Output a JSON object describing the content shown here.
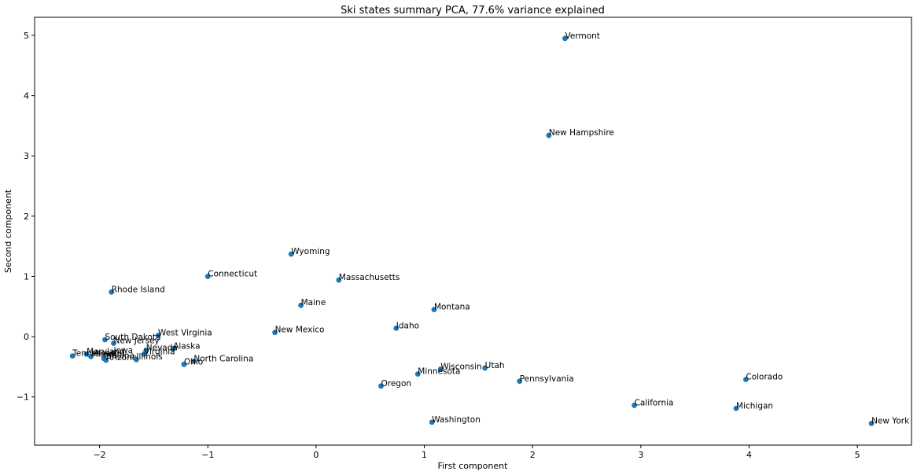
{
  "chart_data": {
    "type": "scatter",
    "title": "Ski states summary PCA, 77.6% variance explained",
    "xlabel": "First component",
    "ylabel": "Second component",
    "xlim": [
      -2.6,
      5.5
    ],
    "ylim": [
      -1.8,
      5.3
    ],
    "xticks": [
      -2,
      -1,
      0,
      1,
      2,
      3,
      4,
      5
    ],
    "yticks": [
      -1,
      0,
      1,
      2,
      3,
      4,
      5
    ],
    "tick_minus": "−",
    "grid": false,
    "marker_color": "#1f77b4",
    "points": [
      {
        "label": "Vermont",
        "x": 2.3,
        "y": 4.95
      },
      {
        "label": "New Hampshire",
        "x": 2.15,
        "y": 3.34
      },
      {
        "label": "Wyoming",
        "x": -0.23,
        "y": 1.37
      },
      {
        "label": "Connecticut",
        "x": -1.0,
        "y": 1.0
      },
      {
        "label": "Massachusetts",
        "x": 0.21,
        "y": 0.94
      },
      {
        "label": "Rhode Island",
        "x": -1.89,
        "y": 0.74
      },
      {
        "label": "Maine",
        "x": -0.14,
        "y": 0.52
      },
      {
        "label": "Montana",
        "x": 1.09,
        "y": 0.45
      },
      {
        "label": "Idaho",
        "x": 0.74,
        "y": 0.14
      },
      {
        "label": "New Mexico",
        "x": -0.38,
        "y": 0.07
      },
      {
        "label": "West Virginia",
        "x": -1.46,
        "y": 0.02
      },
      {
        "label": "South Dakota",
        "x": -1.95,
        "y": -0.05
      },
      {
        "label": "New Jersey",
        "x": -1.87,
        "y": -0.11
      },
      {
        "label": "Alaska",
        "x": -1.32,
        "y": -0.2
      },
      {
        "label": "Nevada",
        "x": -1.57,
        "y": -0.23
      },
      {
        "label": "Virginia",
        "x": -1.59,
        "y": -0.29
      },
      {
        "label": "Iowa",
        "x": -1.87,
        "y": -0.27
      },
      {
        "label": "Maryland",
        "x": -2.12,
        "y": -0.29
      },
      {
        "label": "Tennessee",
        "x": -2.25,
        "y": -0.32
      },
      {
        "label": "Missouri",
        "x": -2.08,
        "y": -0.33
      },
      {
        "label": "Indiana",
        "x": -1.96,
        "y": -0.36
      },
      {
        "label": "Arizona",
        "x": -1.94,
        "y": -0.39
      },
      {
        "label": "Illinois",
        "x": -1.66,
        "y": -0.38
      },
      {
        "label": "North Carolina",
        "x": -1.13,
        "y": -0.41
      },
      {
        "label": "Ohio",
        "x": -1.22,
        "y": -0.46
      },
      {
        "label": "Utah",
        "x": 1.56,
        "y": -0.52
      },
      {
        "label": "Wisconsin",
        "x": 1.15,
        "y": -0.54
      },
      {
        "label": "Minnesota",
        "x": 0.94,
        "y": -0.62
      },
      {
        "label": "Pennsylvania",
        "x": 1.88,
        "y": -0.74
      },
      {
        "label": "Colorado",
        "x": 3.97,
        "y": -0.71
      },
      {
        "label": "Oregon",
        "x": 0.6,
        "y": -0.82
      },
      {
        "label": "California",
        "x": 2.94,
        "y": -1.14
      },
      {
        "label": "Michigan",
        "x": 3.88,
        "y": -1.19
      },
      {
        "label": "Washington",
        "x": 1.07,
        "y": -1.42
      },
      {
        "label": "New York",
        "x": 5.13,
        "y": -1.44
      }
    ]
  }
}
